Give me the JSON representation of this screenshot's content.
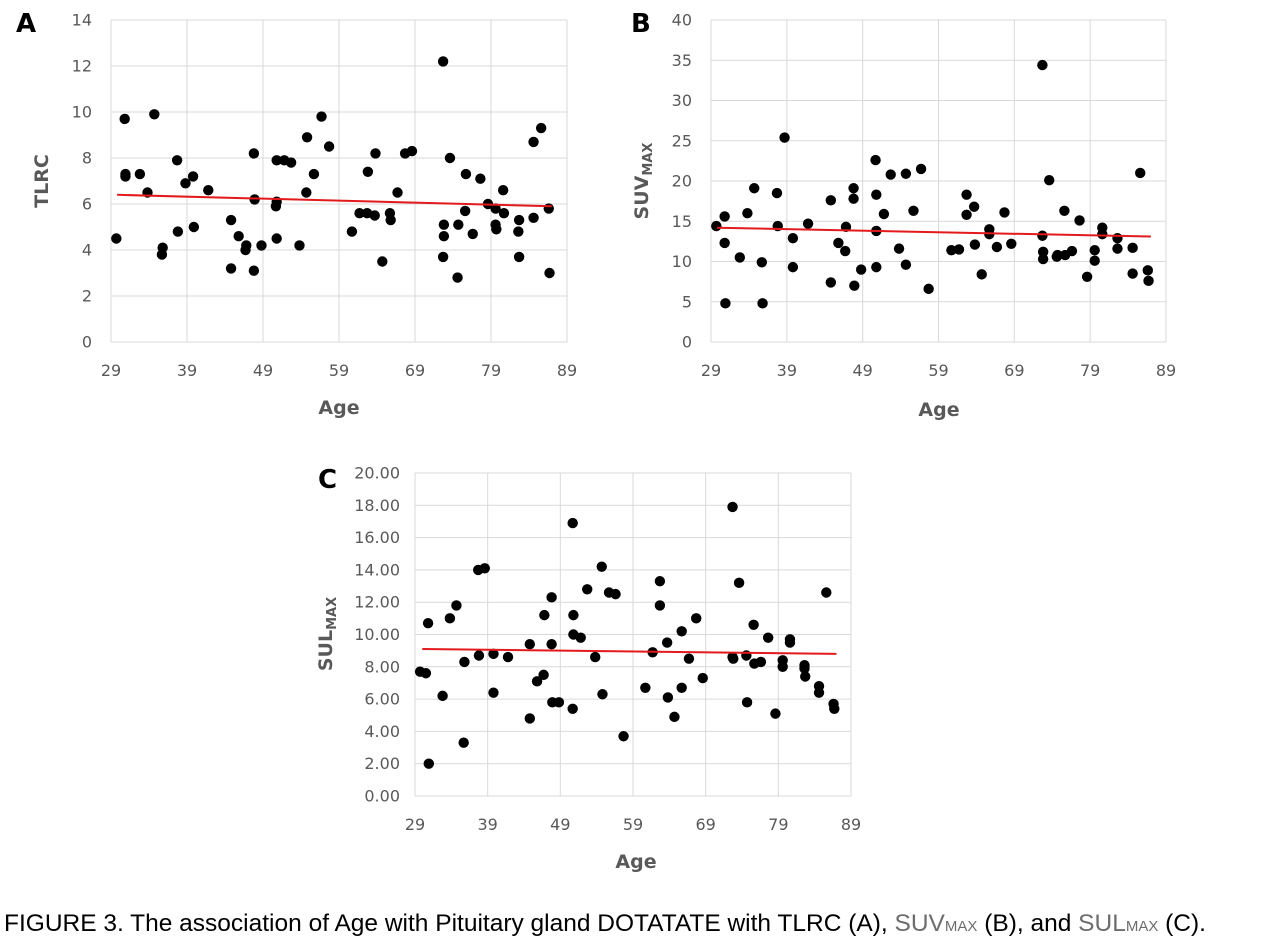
{
  "chart_data": [
    {
      "type": "scatter",
      "panel": "A",
      "ylabel": "TLRC",
      "ylabel_sub": "",
      "xlabel": "Age",
      "xlim": [
        29,
        89
      ],
      "ylim": [
        0,
        14
      ],
      "xticks": [
        "29",
        "39",
        "49",
        "59",
        "69",
        "79",
        "89"
      ],
      "yticks": [
        "0",
        "2",
        "4",
        "6",
        "8",
        "10",
        "12",
        "14"
      ],
      "grid": true,
      "trendline": {
        "x": [
          29.8,
          87
        ],
        "y": [
          6.4,
          5.9
        ],
        "color": "#e31a1c"
      },
      "points": [
        [
          29.7,
          4.5
        ],
        [
          30.8,
          9.7
        ],
        [
          30.9,
          7.2
        ],
        [
          30.9,
          7.3
        ],
        [
          32.8,
          7.3
        ],
        [
          33.8,
          6.5
        ],
        [
          34.7,
          9.9
        ],
        [
          35.7,
          3.8
        ],
        [
          35.8,
          4.1
        ],
        [
          37.7,
          7.9
        ],
        [
          37.8,
          4.8
        ],
        [
          38.8,
          6.9
        ],
        [
          39.8,
          7.2
        ],
        [
          39.9,
          5.0
        ],
        [
          41.8,
          6.6
        ],
        [
          44.8,
          3.2
        ],
        [
          44.8,
          5.3
        ],
        [
          45.8,
          4.6
        ],
        [
          46.7,
          4.0
        ],
        [
          46.8,
          4.2
        ],
        [
          47.8,
          3.1
        ],
        [
          47.8,
          8.2
        ],
        [
          47.9,
          6.2
        ],
        [
          48.8,
          4.2
        ],
        [
          50.7,
          5.9
        ],
        [
          50.8,
          6.1
        ],
        [
          50.8,
          4.5
        ],
        [
          50.8,
          7.9
        ],
        [
          51.8,
          7.9
        ],
        [
          52.7,
          7.8
        ],
        [
          53.8,
          4.2
        ],
        [
          54.7,
          6.5
        ],
        [
          54.8,
          8.9
        ],
        [
          55.7,
          7.3
        ],
        [
          56.7,
          9.8
        ],
        [
          57.7,
          8.5
        ],
        [
          60.7,
          4.8
        ],
        [
          61.7,
          5.6
        ],
        [
          62.7,
          5.6
        ],
        [
          62.8,
          7.4
        ],
        [
          63.7,
          5.5
        ],
        [
          63.8,
          8.2
        ],
        [
          64.7,
          3.5
        ],
        [
          65.7,
          5.6
        ],
        [
          65.8,
          5.3
        ],
        [
          66.7,
          6.5
        ],
        [
          67.7,
          8.2
        ],
        [
          68.6,
          8.3
        ],
        [
          72.7,
          12.2
        ],
        [
          72.7,
          3.7
        ],
        [
          72.8,
          4.6
        ],
        [
          72.8,
          5.1
        ],
        [
          73.6,
          8.0
        ],
        [
          74.6,
          2.8
        ],
        [
          74.7,
          5.1
        ],
        [
          75.6,
          5.7
        ],
        [
          75.7,
          7.3
        ],
        [
          76.6,
          4.7
        ],
        [
          77.6,
          7.1
        ],
        [
          78.6,
          6.0
        ],
        [
          79.6,
          5.8
        ],
        [
          79.6,
          5.1
        ],
        [
          79.7,
          4.9
        ],
        [
          80.6,
          6.6
        ],
        [
          80.7,
          5.6
        ],
        [
          82.6,
          4.8
        ],
        [
          82.7,
          3.7
        ],
        [
          82.7,
          5.3
        ],
        [
          84.6,
          8.7
        ],
        [
          84.6,
          5.4
        ],
        [
          85.6,
          9.3
        ],
        [
          86.6,
          5.8
        ],
        [
          86.7,
          3.0
        ]
      ]
    },
    {
      "type": "scatter",
      "panel": "B",
      "ylabel": "SUV",
      "ylabel_sub": "MAX",
      "xlabel": "Age",
      "xlim": [
        29,
        89
      ],
      "ylim": [
        0,
        40
      ],
      "xticks": [
        "29",
        "39",
        "49",
        "59",
        "69",
        "79",
        "89"
      ],
      "yticks": [
        "0",
        "5",
        "10",
        "15",
        "20",
        "25",
        "30",
        "35",
        "40"
      ],
      "grid": true,
      "trendline": {
        "x": [
          29.8,
          87
        ],
        "y": [
          14.2,
          13.1
        ],
        "color": "#e31a1c"
      },
      "points": [
        [
          29.7,
          14.4
        ],
        [
          30.8,
          15.6
        ],
        [
          30.8,
          12.3
        ],
        [
          30.9,
          4.8
        ],
        [
          32.8,
          10.5
        ],
        [
          33.8,
          16.0
        ],
        [
          34.7,
          19.1
        ],
        [
          35.7,
          9.9
        ],
        [
          35.8,
          4.8
        ],
        [
          37.7,
          18.5
        ],
        [
          37.8,
          14.4
        ],
        [
          38.7,
          25.4
        ],
        [
          39.8,
          12.9
        ],
        [
          39.8,
          9.3
        ],
        [
          41.8,
          14.7
        ],
        [
          44.8,
          17.6
        ],
        [
          44.8,
          7.4
        ],
        [
          45.8,
          12.3
        ],
        [
          46.7,
          11.3
        ],
        [
          46.8,
          14.3
        ],
        [
          47.8,
          17.8
        ],
        [
          47.8,
          19.1
        ],
        [
          47.9,
          7.0
        ],
        [
          48.8,
          9.0
        ],
        [
          50.7,
          22.6
        ],
        [
          50.8,
          18.3
        ],
        [
          50.8,
          13.8
        ],
        [
          50.8,
          9.3
        ],
        [
          51.8,
          15.9
        ],
        [
          52.7,
          20.8
        ],
        [
          53.8,
          11.6
        ],
        [
          54.7,
          20.9
        ],
        [
          54.7,
          9.6
        ],
        [
          55.7,
          16.3
        ],
        [
          56.7,
          21.5
        ],
        [
          57.7,
          6.6
        ],
        [
          60.7,
          11.4
        ],
        [
          61.7,
          11.5
        ],
        [
          62.7,
          18.3
        ],
        [
          62.7,
          15.8
        ],
        [
          63.7,
          16.8
        ],
        [
          63.8,
          12.1
        ],
        [
          64.7,
          8.4
        ],
        [
          65.7,
          13.4
        ],
        [
          65.7,
          14.0
        ],
        [
          66.7,
          11.8
        ],
        [
          67.7,
          16.1
        ],
        [
          68.6,
          12.2
        ],
        [
          72.7,
          34.4
        ],
        [
          72.7,
          13.2
        ],
        [
          72.8,
          10.3
        ],
        [
          72.8,
          11.2
        ],
        [
          73.6,
          20.1
        ],
        [
          74.6,
          10.6
        ],
        [
          74.7,
          10.8
        ],
        [
          75.6,
          16.3
        ],
        [
          75.7,
          10.8
        ],
        [
          76.6,
          11.3
        ],
        [
          77.6,
          15.1
        ],
        [
          78.6,
          8.1
        ],
        [
          79.6,
          11.4
        ],
        [
          79.6,
          10.1
        ],
        [
          80.6,
          14.2
        ],
        [
          80.6,
          13.4
        ],
        [
          82.6,
          12.9
        ],
        [
          82.6,
          11.6
        ],
        [
          84.6,
          8.5
        ],
        [
          84.6,
          11.7
        ],
        [
          85.6,
          21.0
        ],
        [
          86.6,
          8.9
        ],
        [
          86.7,
          7.6
        ]
      ]
    },
    {
      "type": "scatter",
      "panel": "C",
      "ylabel": "SUL",
      "ylabel_sub": "MAX",
      "xlabel": "Age",
      "xlim": [
        29,
        89
      ],
      "ylim": [
        0,
        20
      ],
      "xticks": [
        "29",
        "39",
        "49",
        "59",
        "69",
        "79",
        "89"
      ],
      "yticks": [
        "0.00",
        "2.00",
        "4.00",
        "6.00",
        "8.00",
        "10.00",
        "12.00",
        "14.00",
        "16.00",
        "18.00",
        "20.00"
      ],
      "grid": true,
      "trendline": {
        "x": [
          30,
          87
        ],
        "y": [
          9.1,
          8.8
        ],
        "color": "#e31a1c"
      },
      "points": [
        [
          29.7,
          7.7
        ],
        [
          30.5,
          7.6
        ],
        [
          30.8,
          10.7
        ],
        [
          30.9,
          2.0
        ],
        [
          32.8,
          6.2
        ],
        [
          33.8,
          11.0
        ],
        [
          34.7,
          11.8
        ],
        [
          35.7,
          3.3
        ],
        [
          35.8,
          8.3
        ],
        [
          37.7,
          14.0
        ],
        [
          37.8,
          8.7
        ],
        [
          38.6,
          14.1
        ],
        [
          39.8,
          8.8
        ],
        [
          39.8,
          6.4
        ],
        [
          41.8,
          8.6
        ],
        [
          44.8,
          4.8
        ],
        [
          44.8,
          9.4
        ],
        [
          45.8,
          7.1
        ],
        [
          46.7,
          7.5
        ],
        [
          46.8,
          11.2
        ],
        [
          47.8,
          12.3
        ],
        [
          47.8,
          9.4
        ],
        [
          47.9,
          5.8
        ],
        [
          48.8,
          5.8
        ],
        [
          50.7,
          16.9
        ],
        [
          50.7,
          5.4
        ],
        [
          50.8,
          11.2
        ],
        [
          50.8,
          10.0
        ],
        [
          51.8,
          9.8
        ],
        [
          52.7,
          12.8
        ],
        [
          53.8,
          8.6
        ],
        [
          54.7,
          14.2
        ],
        [
          54.8,
          6.3
        ],
        [
          55.7,
          12.6
        ],
        [
          56.6,
          12.5
        ],
        [
          57.7,
          3.7
        ],
        [
          60.7,
          6.7
        ],
        [
          61.7,
          8.9
        ],
        [
          62.7,
          13.3
        ],
        [
          62.7,
          11.8
        ],
        [
          63.7,
          9.5
        ],
        [
          63.8,
          6.1
        ],
        [
          64.7,
          4.9
        ],
        [
          65.7,
          10.2
        ],
        [
          65.7,
          6.7
        ],
        [
          66.7,
          8.5
        ],
        [
          67.7,
          11.0
        ],
        [
          68.6,
          7.3
        ],
        [
          72.7,
          17.9
        ],
        [
          72.7,
          8.6
        ],
        [
          72.8,
          8.5
        ],
        [
          73.6,
          13.2
        ],
        [
          74.6,
          8.7
        ],
        [
          74.7,
          5.8
        ],
        [
          75.6,
          10.6
        ],
        [
          75.7,
          8.2
        ],
        [
          76.6,
          8.3
        ],
        [
          77.6,
          9.8
        ],
        [
          78.6,
          5.1
        ],
        [
          79.6,
          8.4
        ],
        [
          79.6,
          8.0
        ],
        [
          80.6,
          9.7
        ],
        [
          80.6,
          9.5
        ],
        [
          82.6,
          8.1
        ],
        [
          82.6,
          7.9
        ],
        [
          82.7,
          7.4
        ],
        [
          84.6,
          6.8
        ],
        [
          84.6,
          6.4
        ],
        [
          85.6,
          12.6
        ],
        [
          86.6,
          5.7
        ],
        [
          86.7,
          5.4
        ]
      ]
    }
  ],
  "caption": {
    "prefix": "FIGURE 3. The association of Age with Pituitary gland DOTATATE with TLRC (A), ",
    "suv_main": "SUV",
    "suv_sub": "MAX",
    "mid": " (B), and ",
    "sul_main": "SUL",
    "sul_sub": "MAX",
    "suffix": " (C)."
  }
}
